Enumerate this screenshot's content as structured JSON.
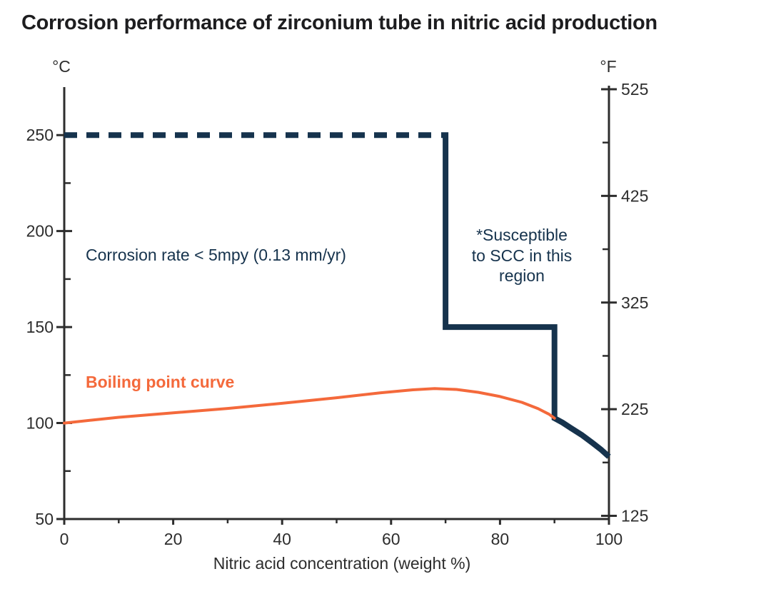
{
  "chart_data": {
    "type": "line",
    "title": "Corrosion performance of zirconium tube in nitric acid production",
    "xlabel": "Nitric acid concentration (weight %)",
    "x_axis": {
      "min": 0,
      "max": 100,
      "major_ticks": [
        0,
        20,
        40,
        60,
        80,
        100
      ],
      "minor_ticks": [
        10,
        30,
        50,
        70,
        90
      ]
    },
    "y_axis_left": {
      "unit": "°C",
      "min": 50,
      "max": 275,
      "major_ticks": [
        50,
        100,
        150,
        200,
        250
      ],
      "minor_ticks": [
        75,
        125,
        175,
        225
      ]
    },
    "y_axis_right": {
      "unit": "°F",
      "major_ticks": [
        125,
        225,
        325,
        425,
        525
      ],
      "minor_ticks": [
        175,
        275,
        375,
        475
      ]
    },
    "grid": false,
    "legend": "none",
    "series": [
      {
        "name": "corrosion-limit-dashed",
        "description": "Upper corrosion-resistance limit, 250 °C from 0–70 wt%",
        "style": "dashed",
        "color": "#16334d",
        "points": [
          [
            0,
            250
          ],
          [
            69,
            250
          ]
        ]
      },
      {
        "name": "corrosion-limit-solid",
        "description": "Corrosion-resistance envelope step: 250→150 °C at 70 wt%, 150 °C to 90 wt%, then down to ~82 °C at 100 wt%",
        "style": "solid",
        "color": "#16334d",
        "points": [
          [
            69.2,
            250
          ],
          [
            70,
            250
          ],
          [
            70,
            150
          ],
          [
            90,
            150
          ],
          [
            90,
            102.5
          ],
          [
            91.5,
            100.2
          ],
          [
            93,
            97.4
          ],
          [
            95,
            93.8
          ],
          [
            97,
            89.6
          ],
          [
            98.5,
            86.3
          ],
          [
            100,
            82.5
          ]
        ]
      },
      {
        "name": "boiling-point-curve",
        "description": "Boiling point of nitric acid solutions, max ~118 °C near 68 wt%",
        "style": "solid",
        "color": "#f4693b",
        "points": [
          [
            0,
            100
          ],
          [
            5,
            101.5
          ],
          [
            10,
            103
          ],
          [
            20,
            105.3
          ],
          [
            30,
            107.6
          ],
          [
            40,
            110.3
          ],
          [
            50,
            113.2
          ],
          [
            58,
            115.7
          ],
          [
            64,
            117.3
          ],
          [
            68,
            118
          ],
          [
            72,
            117.5
          ],
          [
            76,
            116
          ],
          [
            80,
            113.8
          ],
          [
            84,
            110.8
          ],
          [
            87,
            107.5
          ],
          [
            89,
            104.6
          ],
          [
            90,
            102.5
          ]
        ]
      }
    ],
    "annotations": {
      "corrosion_note": "Corrosion rate < 5mpy (0.13 mm/yr)",
      "scc_note": "*Susceptible\nto SCC in this\nregion",
      "boiling_label": "Boiling point curve"
    }
  },
  "colors": {
    "navy": "#16334d",
    "orange": "#f4693b",
    "axis": "#2d2d2d",
    "title": "#1d1d1f",
    "background": "#ffffff"
  }
}
